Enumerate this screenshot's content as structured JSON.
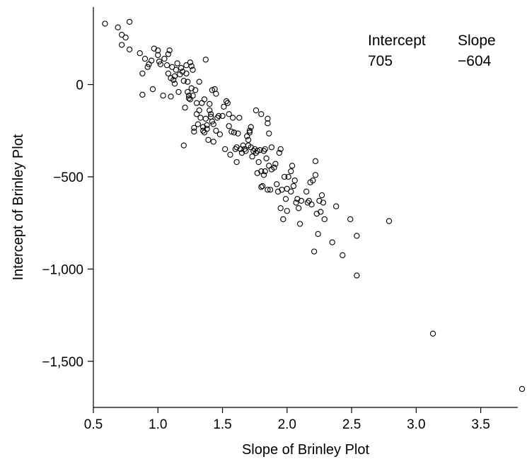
{
  "chart_data": {
    "type": "scatter",
    "xlabel": "Slope of Brinley Plot",
    "ylabel": "Intercept of Brinley Plot",
    "xlim": [
      0.5,
      3.82
    ],
    "ylim": [
      -1750,
      420
    ],
    "x_ticks": [
      0.5,
      1.0,
      1.5,
      2.0,
      2.5,
      3.0,
      3.5
    ],
    "x_tick_labels": [
      "0.5",
      "1.0",
      "1.5",
      "2.0",
      "2.5",
      "3.0",
      "3.5"
    ],
    "y_ticks": [
      0,
      -500,
      -1000,
      -1500
    ],
    "y_tick_labels": [
      "0",
      "−500",
      "−1,000",
      "−1,500"
    ],
    "grid": false,
    "marker": "open-circle",
    "annotation": {
      "intercept_label": "Intercept",
      "intercept_value": "705",
      "slope_label": "Slope",
      "slope_value": "−604"
    },
    "points": [
      [
        0.59,
        330
      ],
      [
        0.69,
        310
      ],
      [
        0.72,
        270
      ],
      [
        0.72,
        215
      ],
      [
        0.75,
        255
      ],
      [
        0.78,
        340
      ],
      [
        0.78,
        190
      ],
      [
        0.86,
        170
      ],
      [
        0.88,
        60
      ],
      [
        0.88,
        -55
      ],
      [
        0.9,
        140
      ],
      [
        0.92,
        95
      ],
      [
        0.93,
        110
      ],
      [
        0.95,
        130
      ],
      [
        0.96,
        -25
      ],
      [
        0.97,
        195
      ],
      [
        1.0,
        185
      ],
      [
        1.0,
        160
      ],
      [
        1.01,
        125
      ],
      [
        1.02,
        110
      ],
      [
        1.04,
        -60
      ],
      [
        1.05,
        140
      ],
      [
        1.07,
        105
      ],
      [
        1.08,
        60
      ],
      [
        1.08,
        165
      ],
      [
        1.09,
        185
      ],
      [
        1.1,
        35
      ],
      [
        1.1,
        -65
      ],
      [
        1.11,
        95
      ],
      [
        1.12,
        25
      ],
      [
        1.13,
        45
      ],
      [
        1.13,
        5
      ],
      [
        1.14,
        80
      ],
      [
        1.15,
        115
      ],
      [
        1.16,
        -40
      ],
      [
        1.17,
        55
      ],
      [
        1.18,
        90
      ],
      [
        1.19,
        70
      ],
      [
        1.2,
        20
      ],
      [
        1.2,
        -330
      ],
      [
        1.21,
        -125
      ],
      [
        1.22,
        105
      ],
      [
        1.22,
        60
      ],
      [
        1.23,
        -40
      ],
      [
        1.23,
        15
      ],
      [
        1.24,
        -60
      ],
      [
        1.24,
        -75
      ],
      [
        1.25,
        -80
      ],
      [
        1.25,
        120
      ],
      [
        1.26,
        100
      ],
      [
        1.26,
        -20
      ],
      [
        1.27,
        80
      ],
      [
        1.27,
        -60
      ],
      [
        1.28,
        -235
      ],
      [
        1.28,
        -255
      ],
      [
        1.29,
        -30
      ],
      [
        1.3,
        -160
      ],
      [
        1.3,
        -100
      ],
      [
        1.31,
        -215
      ],
      [
        1.32,
        15
      ],
      [
        1.32,
        -140
      ],
      [
        1.33,
        -180
      ],
      [
        1.34,
        -100
      ],
      [
        1.35,
        -250
      ],
      [
        1.35,
        -230
      ],
      [
        1.36,
        -80
      ],
      [
        1.36,
        -260
      ],
      [
        1.37,
        135
      ],
      [
        1.37,
        -185
      ],
      [
        1.38,
        -220
      ],
      [
        1.38,
        -240
      ],
      [
        1.39,
        -300
      ],
      [
        1.4,
        -105
      ],
      [
        1.4,
        -140
      ],
      [
        1.41,
        -160
      ],
      [
        1.41,
        -175
      ],
      [
        1.42,
        -30
      ],
      [
        1.42,
        -200
      ],
      [
        1.43,
        -215
      ],
      [
        1.43,
        -310
      ],
      [
        1.44,
        -25
      ],
      [
        1.45,
        -50
      ],
      [
        1.45,
        -250
      ],
      [
        1.46,
        -180
      ],
      [
        1.47,
        -170
      ],
      [
        1.48,
        -270
      ],
      [
        1.5,
        -170
      ],
      [
        1.51,
        -120
      ],
      [
        1.52,
        -350
      ],
      [
        1.53,
        -90
      ],
      [
        1.54,
        -100
      ],
      [
        1.55,
        -160
      ],
      [
        1.55,
        -225
      ],
      [
        1.56,
        -380
      ],
      [
        1.57,
        -255
      ],
      [
        1.58,
        -180
      ],
      [
        1.59,
        -260
      ],
      [
        1.6,
        -350
      ],
      [
        1.61,
        -340
      ],
      [
        1.61,
        -420
      ],
      [
        1.62,
        -265
      ],
      [
        1.63,
        -180
      ],
      [
        1.64,
        -350
      ],
      [
        1.65,
        -370
      ],
      [
        1.66,
        -330
      ],
      [
        1.67,
        -350
      ],
      [
        1.68,
        -360
      ],
      [
        1.69,
        -280
      ],
      [
        1.7,
        -300
      ],
      [
        1.7,
        -330
      ],
      [
        1.71,
        -250
      ],
      [
        1.71,
        -260
      ],
      [
        1.72,
        -230
      ],
      [
        1.72,
        -340
      ],
      [
        1.73,
        -390
      ],
      [
        1.74,
        -360
      ],
      [
        1.75,
        -350
      ],
      [
        1.76,
        -140
      ],
      [
        1.76,
        -370
      ],
      [
        1.77,
        -360
      ],
      [
        1.77,
        -480
      ],
      [
        1.78,
        -420
      ],
      [
        1.79,
        -355
      ],
      [
        1.8,
        -160
      ],
      [
        1.8,
        -470
      ],
      [
        1.8,
        -555
      ],
      [
        1.81,
        -550
      ],
      [
        1.82,
        -360
      ],
      [
        1.82,
        -490
      ],
      [
        1.83,
        -350
      ],
      [
        1.83,
        -470
      ],
      [
        1.84,
        -400
      ],
      [
        1.85,
        -570
      ],
      [
        1.85,
        -210
      ],
      [
        1.85,
        -185
      ],
      [
        1.86,
        -265
      ],
      [
        1.86,
        -440
      ],
      [
        1.87,
        -570
      ],
      [
        1.88,
        -340
      ],
      [
        1.88,
        -460
      ],
      [
        1.9,
        -450
      ],
      [
        1.91,
        -430
      ],
      [
        1.92,
        -540
      ],
      [
        1.93,
        -580
      ],
      [
        1.94,
        -370
      ],
      [
        1.95,
        -670
      ],
      [
        1.95,
        -350
      ],
      [
        1.96,
        -570
      ],
      [
        1.97,
        -730
      ],
      [
        1.98,
        -500
      ],
      [
        1.99,
        -620
      ],
      [
        2.0,
        -685
      ],
      [
        2.0,
        -565
      ],
      [
        2.01,
        -500
      ],
      [
        2.03,
        -580
      ],
      [
        2.03,
        -470
      ],
      [
        2.04,
        -440
      ],
      [
        2.05,
        -550
      ],
      [
        2.06,
        -520
      ],
      [
        2.07,
        -640
      ],
      [
        2.08,
        -620
      ],
      [
        2.09,
        -670
      ],
      [
        2.1,
        -755
      ],
      [
        2.11,
        -630
      ],
      [
        2.15,
        -580
      ],
      [
        2.16,
        -640
      ],
      [
        2.17,
        -630
      ],
      [
        2.18,
        -530
      ],
      [
        2.19,
        -650
      ],
      [
        2.2,
        -520
      ],
      [
        2.21,
        -905
      ],
      [
        2.22,
        -415
      ],
      [
        2.22,
        -490
      ],
      [
        2.23,
        -700
      ],
      [
        2.24,
        -810
      ],
      [
        2.25,
        -630
      ],
      [
        2.26,
        -690
      ],
      [
        2.27,
        -600
      ],
      [
        2.28,
        -640
      ],
      [
        2.29,
        -730
      ],
      [
        2.35,
        -855
      ],
      [
        2.38,
        -660
      ],
      [
        2.43,
        -925
      ],
      [
        2.49,
        -730
      ],
      [
        2.54,
        -820
      ],
      [
        2.54,
        -1035
      ],
      [
        2.79,
        -740
      ],
      [
        3.13,
        -1350
      ],
      [
        3.82,
        -1650
      ]
    ]
  }
}
